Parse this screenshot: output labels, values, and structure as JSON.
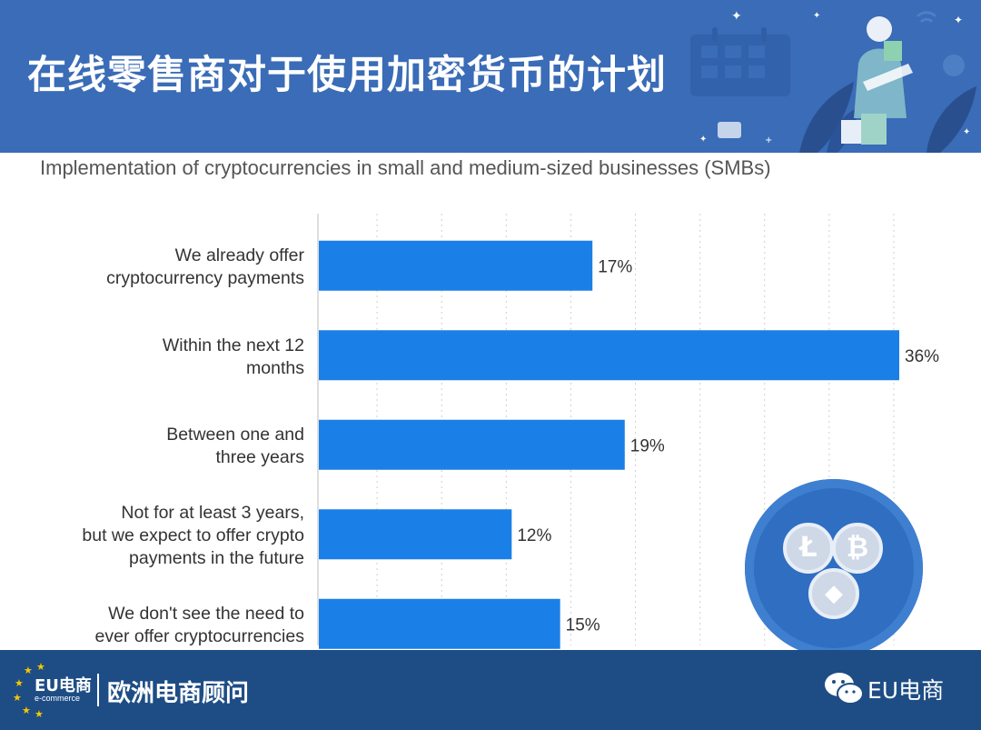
{
  "header": {
    "title": "在线零售商对于使用加密货币的计划"
  },
  "subtitle": "Implementation of cryptocurrencies in small and medium-sized businesses (SMBs)",
  "colors": {
    "bar": "#1a7fe6",
    "header_bg": "#3a6cb7",
    "footer_bg": "#1e4d85"
  },
  "chart_data": {
    "type": "bar",
    "orientation": "horizontal",
    "title": "",
    "categories": [
      "We already offer\ncryptocurrency payments",
      "Within the next 12\nmonths",
      "Between one and\nthree years",
      "Not for at least 3 years,\nbut we expect to offer crypto\npayments in the future",
      "We don't see the need to\never offer cryptocurrencies"
    ],
    "values": [
      17,
      36,
      19,
      12,
      15
    ],
    "value_labels": [
      "17%",
      "36%",
      "19%",
      "12%",
      "15%"
    ],
    "xlim": [
      0,
      36
    ],
    "grid": true,
    "legend": "none"
  },
  "footer": {
    "logo_eu": "EU电商",
    "logo_sub": "e-commerce",
    "logo_cn": "欧洲电商顾问",
    "wechat_label": "EU电商"
  }
}
